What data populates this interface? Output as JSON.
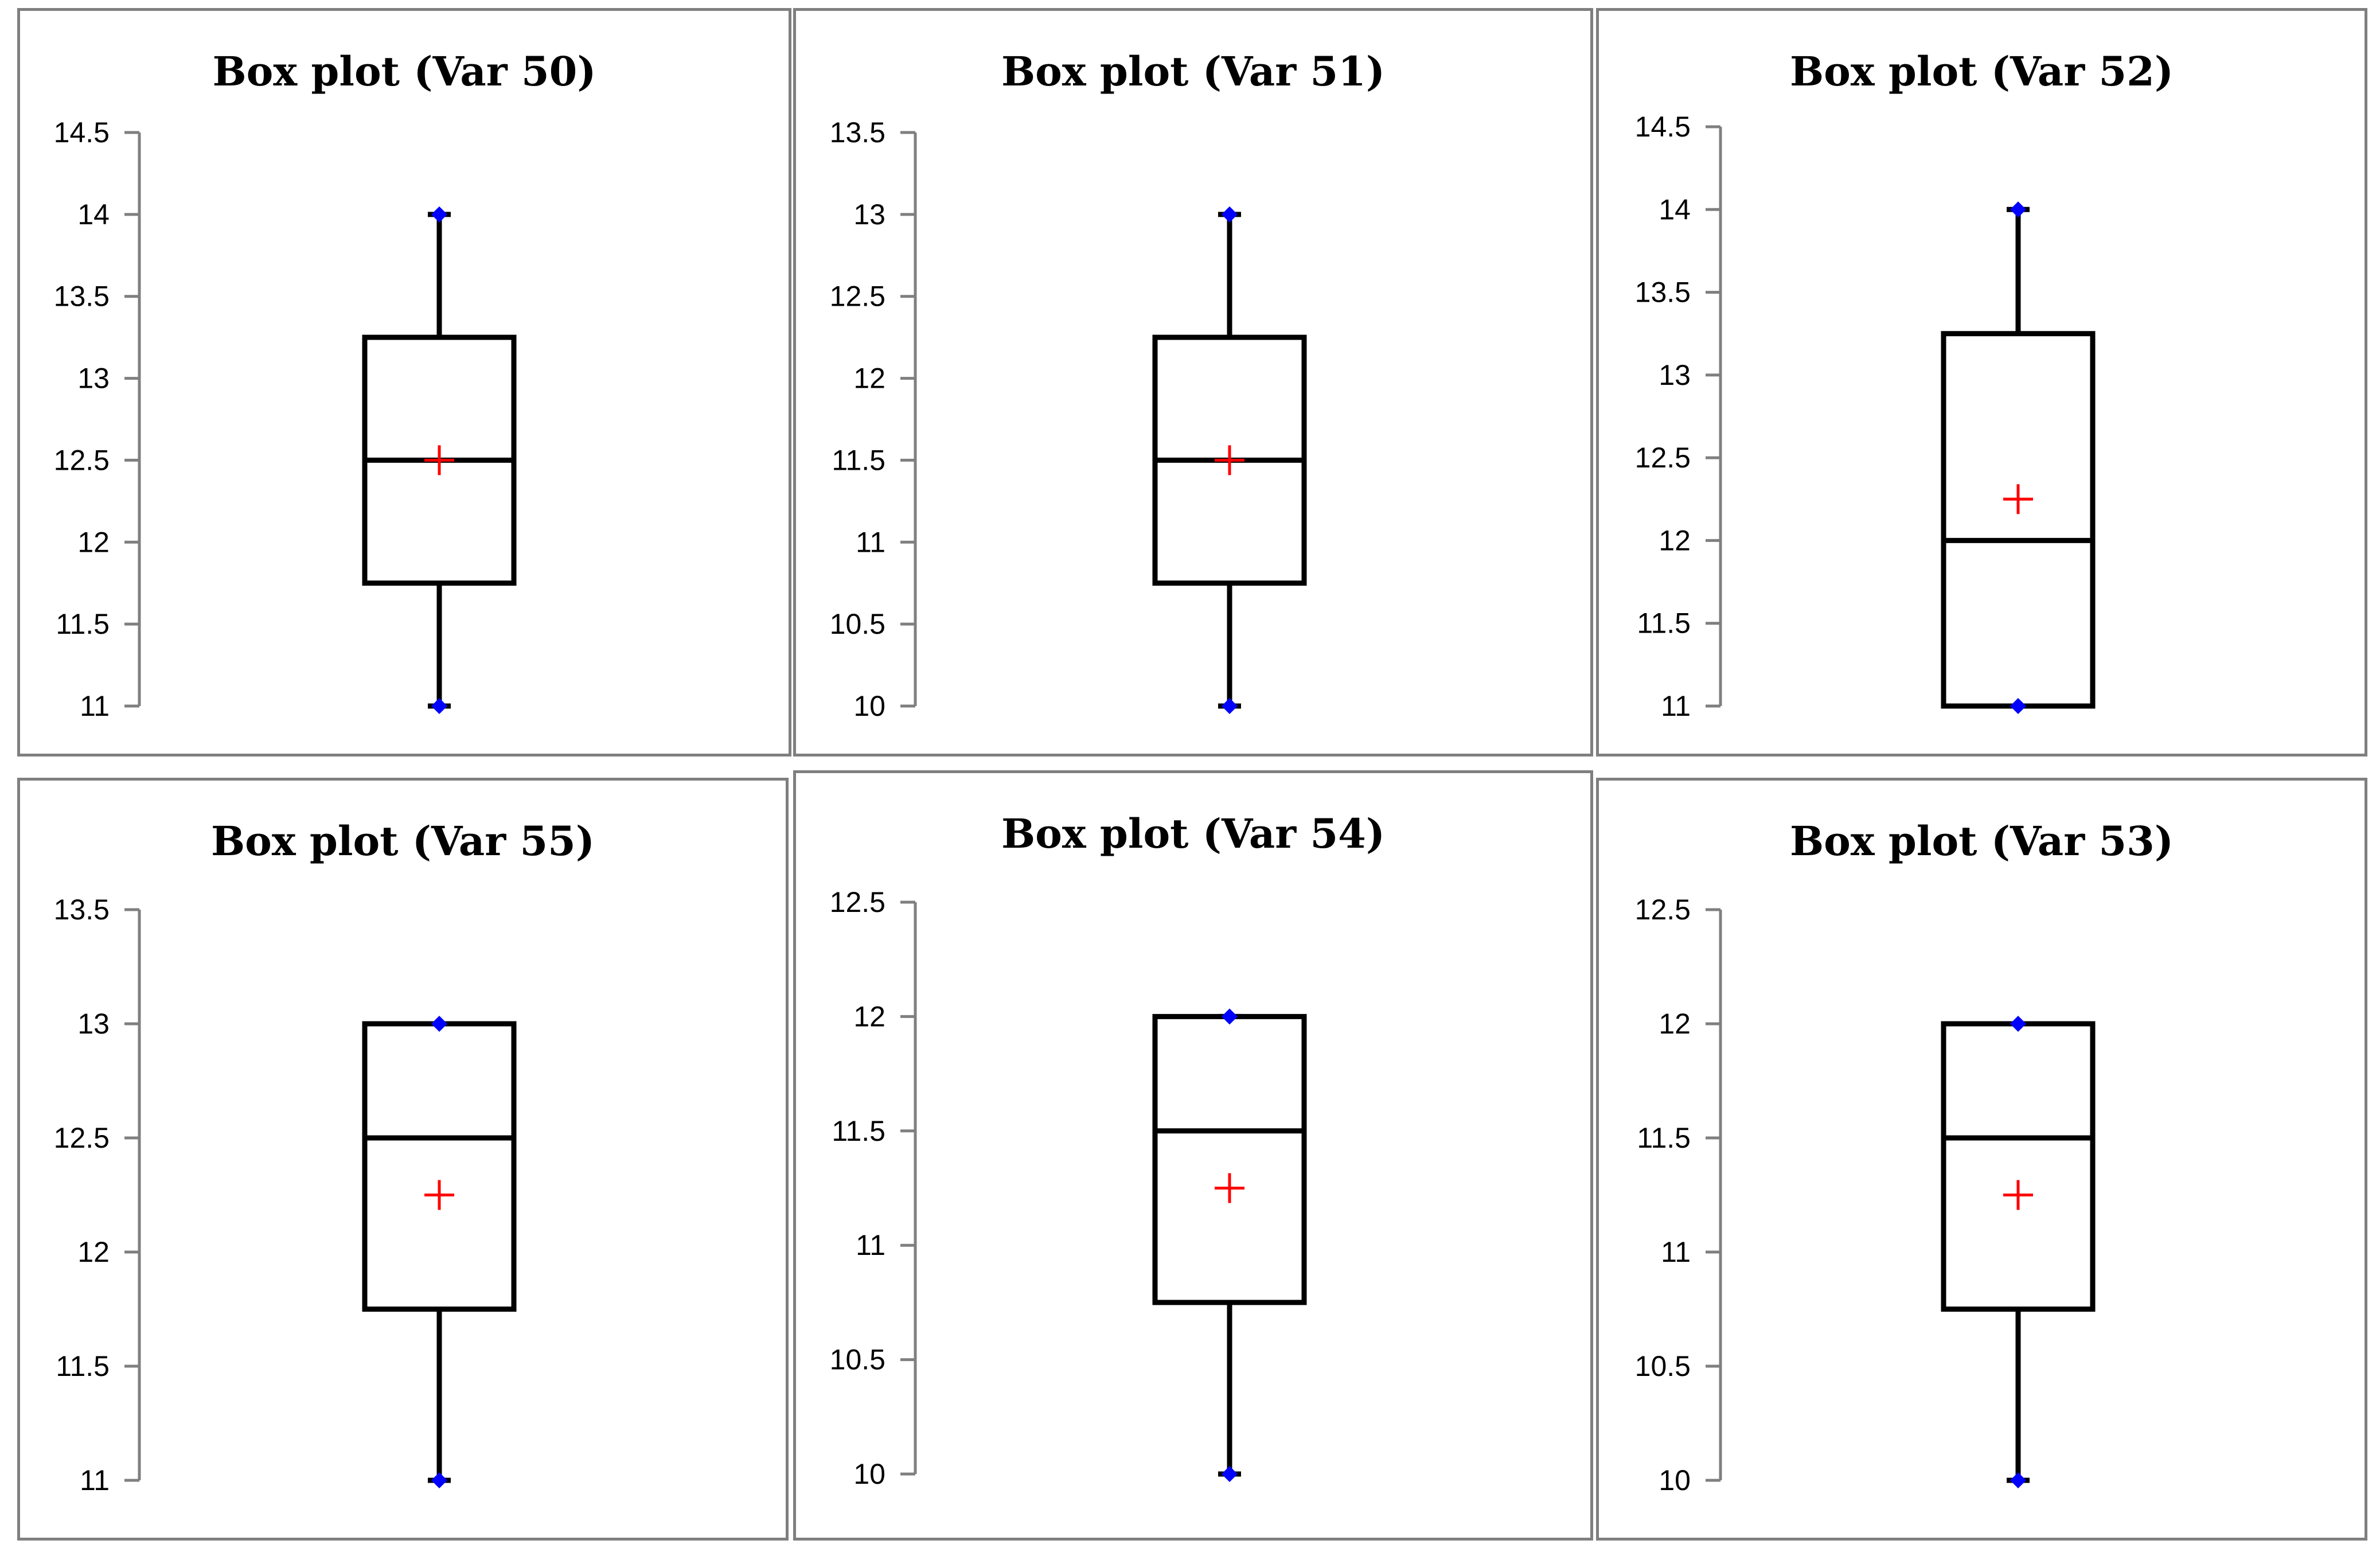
{
  "colors": {
    "box": "#000000",
    "axis": "#7f7f7f",
    "mean": "#ff0000",
    "extreme_points": "#0000ff",
    "panel_border": "#7f7f7f"
  },
  "chart_data": [
    {
      "type": "box",
      "title": "Box plot (Var 50)",
      "ylim": [
        11,
        14.5
      ],
      "yticks": [
        "11",
        "11.5",
        "12",
        "12.5",
        "13",
        "13.5",
        "14",
        "14.5"
      ],
      "min": 11,
      "q1": 11.75,
      "median": 12.5,
      "q3": 13.25,
      "max": 14,
      "mean": 12.5
    },
    {
      "type": "box",
      "title": "Box plot (Var 51)",
      "ylim": [
        10,
        13.5
      ],
      "yticks": [
        "10",
        "10.5",
        "11",
        "11.5",
        "12",
        "12.5",
        "13",
        "13.5"
      ],
      "min": 10,
      "q1": 10.75,
      "median": 11.5,
      "q3": 12.25,
      "max": 13,
      "mean": 11.5
    },
    {
      "type": "box",
      "title": "Box plot (Var 52)",
      "ylim": [
        11,
        14.5
      ],
      "yticks": [
        "11",
        "11.5",
        "12",
        "12.5",
        "13",
        "13.5",
        "14",
        "14.5"
      ],
      "min": 11,
      "q1": 11,
      "median": 12,
      "q3": 13.25,
      "max": 14,
      "mean": 12.25
    },
    {
      "type": "box",
      "title": "Box plot (Var 55)",
      "ylim": [
        11,
        13.5
      ],
      "yticks": [
        "11",
        "11.5",
        "12",
        "12.5",
        "13",
        "13.5"
      ],
      "min": 11,
      "q1": 11.75,
      "median": 12.5,
      "q3": 13,
      "max": 13,
      "mean": 12.25
    },
    {
      "type": "box",
      "title": "Box plot (Var 54)",
      "ylim": [
        10,
        12.5
      ],
      "yticks": [
        "10",
        "10.5",
        "11",
        "11.5",
        "12",
        "12.5"
      ],
      "min": 10,
      "q1": 10.75,
      "median": 11.5,
      "q3": 12,
      "max": 12,
      "mean": 11.25
    },
    {
      "type": "box",
      "title": "Box plot (Var 53)",
      "ylim": [
        10,
        12.5
      ],
      "yticks": [
        "10",
        "10.5",
        "11",
        "11.5",
        "12",
        "12.5"
      ],
      "min": 10,
      "q1": 10.75,
      "median": 11.5,
      "q3": 12,
      "max": 12,
      "mean": 11.25
    }
  ]
}
